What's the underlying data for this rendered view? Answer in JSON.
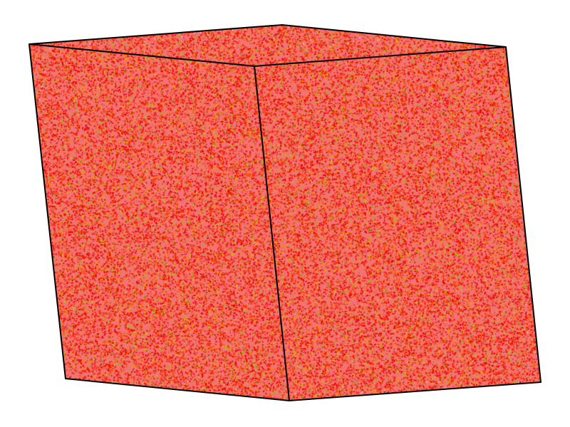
{
  "scene": {
    "background": "#ffffff",
    "frame_color": "#000000",
    "particle_colors": [
      "#e60000",
      "#ff2a00",
      "#e65c00",
      "#ff8c00",
      "#b8c800",
      "#6cc400",
      "#d01010"
    ],
    "particle_color_weights": [
      0.38,
      0.27,
      0.12,
      0.09,
      0.08,
      0.03,
      0.03
    ]
  }
}
